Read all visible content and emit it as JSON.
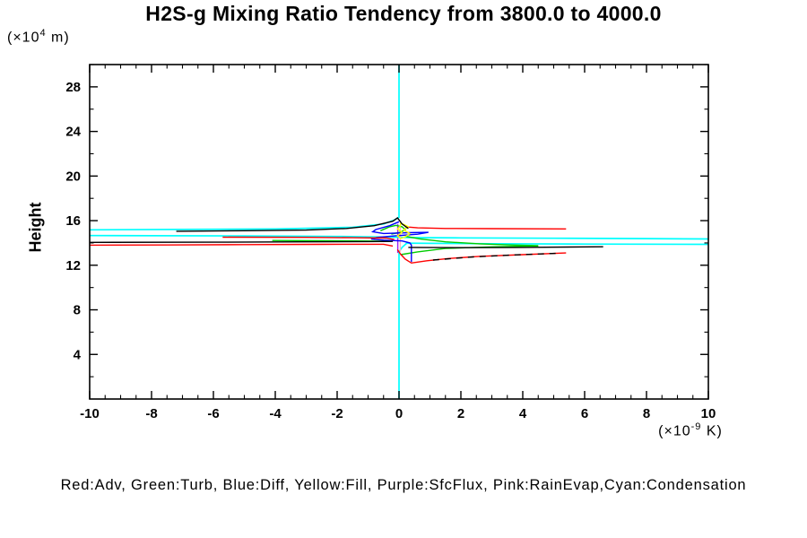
{
  "title": "H2S-g Mixing Ratio Tendency from 3800.0 to 4000.0",
  "y_axis": {
    "title": "Height",
    "unit_prefix": "(×10",
    "unit_sup": "4",
    "unit_suffix": " m)"
  },
  "x_axis": {
    "unit_prefix": "(×10",
    "unit_sup": "-9",
    "unit_suffix": " K)"
  },
  "legend": {
    "text": "Red:Adv, Green:Turb, Blue:Diff, Yellow:Fill, Purple:SfcFlux, Pink:RainEvap,Cyan:Condensation"
  },
  "chart_data": {
    "type": "line",
    "title": "H2S-g Mixing Ratio Tendency from 3800.0 to 4000.0",
    "xlabel": "(×10⁻⁹ K)",
    "ylabel": "Height (×10⁴ m)",
    "xlim": [
      -10,
      10
    ],
    "ylim": [
      0,
      30
    ],
    "grid": false,
    "legend_position": "bottom",
    "x_major_ticks": [
      -10,
      -8,
      -6,
      -4,
      -2,
      0,
      2,
      4,
      6,
      8,
      10
    ],
    "x_tick_labels": [
      "-10",
      "-8",
      "-6",
      "-4",
      "-2",
      "0",
      "2",
      "4",
      "6",
      "8",
      "10"
    ],
    "x_minor_step": 0.5,
    "y_major_ticks": [
      4,
      8,
      12,
      16,
      20,
      24,
      28
    ],
    "y_tick_labels": [
      "4",
      "8",
      "12",
      "16",
      "20",
      "24",
      "28"
    ],
    "y_minor_step": 2,
    "colors": {
      "Adv": "#ff0000",
      "Turb": "#00cc00",
      "Diff": "#0000ff",
      "Fill": "#ffff00",
      "SfcFlux": "#a020f0",
      "RainEvap": "#ffb6c1",
      "Condensation": "#00ffff"
    },
    "series": [
      {
        "name": "SfcFlux",
        "color": "#a020f0",
        "width": 1.4,
        "segments": [
          [
            [
              -0.04,
              15.7
            ],
            [
              -0.04,
              13.1
            ]
          ]
        ]
      },
      {
        "name": "Condensation",
        "color": "#00ffff",
        "width": 1.7,
        "segments": [
          [
            [
              0,
              30
            ],
            [
              0,
              16.3
            ],
            [
              -0.15,
              16.05
            ],
            [
              -0.5,
              15.7
            ],
            [
              -1.5,
              15.4
            ],
            [
              -4,
              15.25
            ],
            [
              -10,
              15.18
            ]
          ],
          [
            [
              -10,
              14.66
            ],
            [
              -5,
              14.63
            ],
            [
              -2,
              14.58
            ],
            [
              -0.5,
              14.53
            ],
            [
              0.5,
              14.48
            ],
            [
              2,
              14.45
            ],
            [
              5,
              14.42
            ],
            [
              8,
              14.39
            ],
            [
              10,
              14.36
            ]
          ],
          [
            [
              10,
              13.87
            ],
            [
              6,
              13.9
            ],
            [
              3,
              13.93
            ],
            [
              1,
              13.96
            ],
            [
              0.25,
              13.98
            ],
            [
              0.1,
              13.6
            ],
            [
              0,
              13.2
            ],
            [
              0,
              0
            ]
          ]
        ]
      },
      {
        "name": "RainEvap",
        "color": "#ffb6c1",
        "width": 1.4,
        "segments": [
          [
            [
              0.04,
              15.6
            ],
            [
              0.04,
              13.2
            ]
          ]
        ]
      },
      {
        "name": "Turb",
        "color": "#00cc00",
        "width": 1.4,
        "segments": [
          [
            [
              -4.1,
              14.22
            ],
            [
              -2.5,
              14.2
            ],
            [
              -1,
              14.17
            ],
            [
              -0.3,
              14.15
            ]
          ],
          [
            [
              -0.6,
              15.1
            ],
            [
              -0.3,
              15.45
            ],
            [
              -0.1,
              15.58
            ],
            [
              0.1,
              15.45
            ],
            [
              0.2,
              15.2
            ],
            [
              0.05,
              14.95
            ],
            [
              -0.25,
              14.8
            ]
          ],
          [
            [
              0.2,
              14.6
            ],
            [
              0.7,
              14.35
            ],
            [
              1.5,
              14.1
            ],
            [
              2.6,
              13.92
            ],
            [
              3.6,
              13.82
            ],
            [
              4.5,
              13.76
            ]
          ],
          [
            [
              0.05,
              12.95
            ],
            [
              0.6,
              13.2
            ],
            [
              1.5,
              13.5
            ],
            [
              3,
              13.65
            ],
            [
              4.5,
              13.73
            ]
          ]
        ]
      },
      {
        "name": "Diff",
        "color": "#0000ff",
        "width": 1.4,
        "segments": [
          [
            [
              0,
              15.9
            ],
            [
              -0.3,
              15.55
            ],
            [
              -0.75,
              15.2
            ],
            [
              -0.85,
              15.0
            ],
            [
              -0.5,
              14.85
            ],
            [
              0.3,
              14.92
            ],
            [
              0.95,
              14.95
            ],
            [
              0.6,
              14.78
            ],
            [
              -0.1,
              14.65
            ],
            [
              -0.7,
              14.5
            ],
            [
              -0.9,
              14.35
            ],
            [
              -0.5,
              14.25
            ],
            [
              0.1,
              14.18
            ],
            [
              0.35,
              14.0
            ],
            [
              0.4,
              13.8
            ],
            [
              0.4,
              12.3
            ]
          ]
        ]
      },
      {
        "name": "Adv",
        "color": "#ff0000",
        "width": 1.4,
        "segments": [
          [
            [
              0.2,
              15.45
            ],
            [
              0.6,
              15.35
            ],
            [
              1.5,
              15.3
            ],
            [
              3,
              15.28
            ],
            [
              5.4,
              15.26
            ]
          ],
          [
            [
              -5.7,
              14.52
            ],
            [
              -3,
              14.5
            ],
            [
              -1.5,
              14.47
            ],
            [
              -0.4,
              14.44
            ],
            [
              -0.15,
              14.3
            ]
          ],
          [
            [
              -10,
              13.8
            ],
            [
              -7.5,
              13.82
            ],
            [
              -5,
              13.85
            ],
            [
              -2.5,
              13.87
            ],
            [
              -0.5,
              13.88
            ],
            [
              -0.2,
              13.72
            ]
          ],
          [
            [
              -0.05,
              13.4
            ],
            [
              0.05,
              13.0
            ],
            [
              0.2,
              12.55
            ],
            [
              0.4,
              12.2
            ],
            [
              0.9,
              12.4
            ],
            [
              1.6,
              12.6
            ],
            [
              2.6,
              12.8
            ],
            [
              4,
              12.95
            ],
            [
              5.4,
              13.1
            ]
          ]
        ]
      },
      {
        "name": "Fill",
        "color": "#ffff00",
        "width": 1.4,
        "segments": [
          [
            [
              0.05,
              15.8
            ],
            [
              0.3,
              15.45
            ],
            [
              0.15,
              15.15
            ],
            [
              0.35,
              14.85
            ],
            [
              0.2,
              14.55
            ],
            [
              0.05,
              14.4
            ],
            [
              -0.05,
              14.65
            ],
            [
              0.1,
              14.95
            ],
            [
              -0.05,
              15.25
            ],
            [
              0.05,
              15.55
            ],
            [
              0.05,
              15.8
            ]
          ]
        ]
      },
      {
        "name": "unlabeled-black",
        "color": "#000000",
        "width": 1.4,
        "segments": [
          [
            [
              -7.2,
              15.05
            ],
            [
              -5,
              15.1
            ],
            [
              -3,
              15.15
            ],
            [
              -1.7,
              15.3
            ],
            [
              -0.8,
              15.55
            ],
            [
              -0.2,
              15.95
            ],
            [
              -0.05,
              16.25
            ],
            [
              0.1,
              15.7
            ],
            [
              0.3,
              15.3
            ]
          ],
          [
            [
              -10,
              14.05
            ],
            [
              -6,
              14.07
            ],
            [
              -3,
              14.1
            ],
            [
              -1,
              14.12
            ],
            [
              -0.2,
              14.14
            ]
          ],
          [
            [
              0.3,
              13.6
            ],
            [
              2,
              13.58
            ],
            [
              4,
              13.6
            ],
            [
              5.5,
              13.63
            ],
            [
              6.6,
              13.66
            ]
          ]
        ]
      },
      {
        "name": "unlabeled-black-dashed",
        "color": "#000000",
        "width": 1.4,
        "dash": "7 6",
        "segments": [
          [
            [
              1.1,
              12.47
            ],
            [
              2.4,
              12.75
            ],
            [
              3.8,
              12.93
            ],
            [
              5.2,
              13.08
            ]
          ]
        ]
      }
    ]
  }
}
